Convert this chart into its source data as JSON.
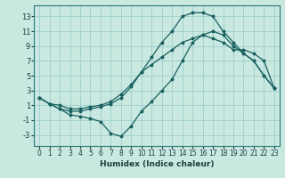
{
  "xlabel": "Humidex (Indice chaleur)",
  "xlim": [
    -0.5,
    23.5
  ],
  "ylim": [
    -4.5,
    14.5
  ],
  "xticks": [
    0,
    1,
    2,
    3,
    4,
    5,
    6,
    7,
    8,
    9,
    10,
    11,
    12,
    13,
    14,
    15,
    16,
    17,
    18,
    19,
    20,
    21,
    22,
    23
  ],
  "yticks": [
    -3,
    -1,
    1,
    3,
    5,
    7,
    9,
    11,
    13
  ],
  "bg_color": "#c8e8e0",
  "grid_color": "#9ecece",
  "line_color": "#1a6060",
  "line1_x": [
    0,
    1,
    2,
    3,
    4,
    5,
    6,
    7,
    8,
    9,
    10,
    11,
    12,
    13,
    14,
    15,
    16,
    17,
    18,
    19,
    20,
    21,
    22,
    23
  ],
  "line1_y": [
    2.0,
    1.2,
    1.0,
    0.5,
    0.5,
    0.8,
    1.0,
    1.5,
    2.5,
    3.8,
    5.5,
    6.5,
    7.5,
    8.5,
    9.5,
    10.0,
    10.5,
    10.0,
    9.5,
    8.5,
    8.5,
    8.0,
    7.0,
    3.3
  ],
  "line2_x": [
    0,
    1,
    2,
    3,
    4,
    5,
    6,
    7,
    8,
    9,
    10,
    11,
    12,
    13,
    14,
    15,
    16,
    17,
    18,
    19,
    20,
    21,
    22,
    23
  ],
  "line2_y": [
    2.0,
    1.2,
    0.5,
    0.2,
    0.2,
    0.5,
    0.8,
    1.2,
    2.0,
    3.5,
    5.5,
    7.5,
    9.5,
    11.0,
    13.0,
    13.5,
    13.5,
    13.0,
    11.0,
    9.5,
    8.0,
    7.0,
    5.0,
    3.3
  ],
  "line3_x": [
    0,
    1,
    2,
    3,
    4,
    5,
    6,
    7,
    8,
    9,
    10,
    11,
    12,
    13,
    14,
    15,
    16,
    17,
    18,
    19,
    20,
    21,
    22,
    23
  ],
  "line3_y": [
    2.0,
    1.2,
    0.5,
    -0.3,
    -0.5,
    -0.8,
    -1.2,
    -2.8,
    -3.2,
    -1.8,
    0.2,
    1.5,
    3.0,
    4.5,
    7.0,
    9.5,
    10.5,
    11.0,
    10.5,
    9.0,
    8.0,
    7.0,
    5.0,
    3.3
  ]
}
